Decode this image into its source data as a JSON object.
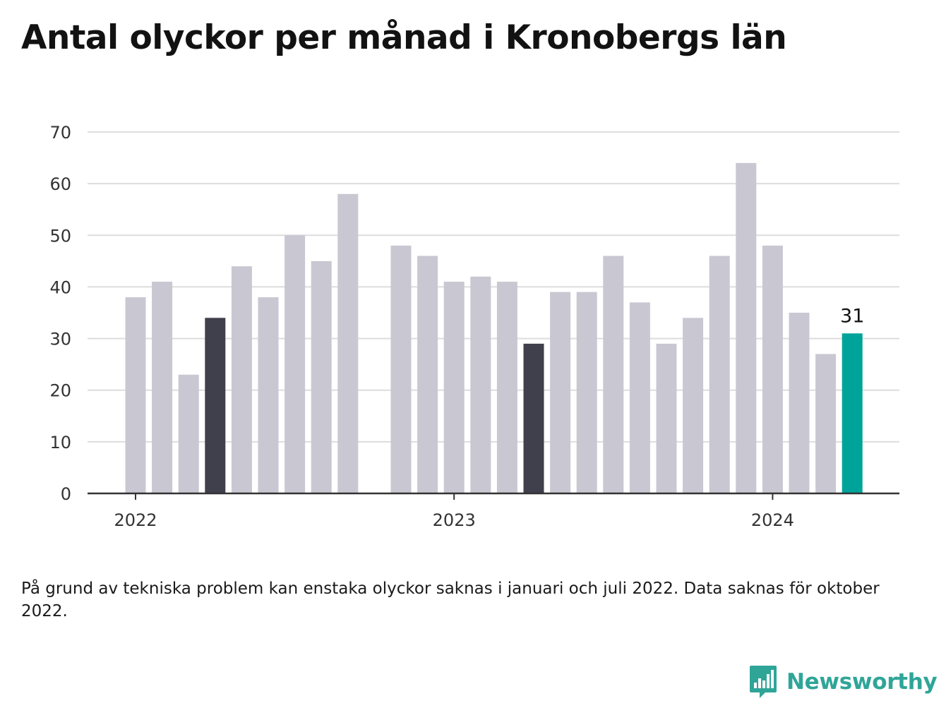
{
  "title": "Antal olyckor per månad i Kronobergs län",
  "footnote": "På grund av tekniska problem kan enstaka olyckor saknas i januari och juli 2022. Data saknas för oktober 2022.",
  "brand": {
    "name": "Newsworthy",
    "icon": "newsworthy-logo-icon",
    "color": "#2fa598"
  },
  "colors": {
    "default_bar": "#c9c8d2",
    "highlight_bar": "#403f4c",
    "latest_bar": "#00a39a",
    "grid": "#dddddd",
    "axis": "#333333",
    "tick_text": "#333333"
  },
  "chart_data": {
    "type": "bar",
    "title": "Antal olyckor per månad i Kronobergs län",
    "xlabel": "",
    "ylabel": "",
    "ylim": [
      0,
      70
    ],
    "yticks": [
      "0",
      "10",
      "20",
      "30",
      "40",
      "50",
      "60",
      "70"
    ],
    "xticks": [
      {
        "label": "2022",
        "month": "2022-01"
      },
      {
        "label": "2023",
        "month": "2023-01"
      },
      {
        "label": "2024",
        "month": "2024-01"
      }
    ],
    "grid": true,
    "legend": "none",
    "bars": [
      {
        "month": "2022-01",
        "value": 38,
        "style": "default"
      },
      {
        "month": "2022-02",
        "value": 41,
        "style": "default"
      },
      {
        "month": "2022-03",
        "value": 23,
        "style": "default"
      },
      {
        "month": "2022-04",
        "value": 34,
        "style": "highlight"
      },
      {
        "month": "2022-05",
        "value": 44,
        "style": "default"
      },
      {
        "month": "2022-06",
        "value": 38,
        "style": "default"
      },
      {
        "month": "2022-07",
        "value": 50,
        "style": "default"
      },
      {
        "month": "2022-08",
        "value": 45,
        "style": "default"
      },
      {
        "month": "2022-09",
        "value": 58,
        "style": "default"
      },
      {
        "month": "2022-10",
        "value": null,
        "style": "default"
      },
      {
        "month": "2022-11",
        "value": 48,
        "style": "default"
      },
      {
        "month": "2022-12",
        "value": 46,
        "style": "default"
      },
      {
        "month": "2023-01",
        "value": 41,
        "style": "default"
      },
      {
        "month": "2023-02",
        "value": 42,
        "style": "default"
      },
      {
        "month": "2023-03",
        "value": 41,
        "style": "default"
      },
      {
        "month": "2023-04",
        "value": 29,
        "style": "highlight"
      },
      {
        "month": "2023-05",
        "value": 39,
        "style": "default"
      },
      {
        "month": "2023-06",
        "value": 39,
        "style": "default"
      },
      {
        "month": "2023-07",
        "value": 46,
        "style": "default"
      },
      {
        "month": "2023-08",
        "value": 37,
        "style": "default"
      },
      {
        "month": "2023-09",
        "value": 29,
        "style": "default"
      },
      {
        "month": "2023-10",
        "value": 34,
        "style": "default"
      },
      {
        "month": "2023-11",
        "value": 46,
        "style": "default"
      },
      {
        "month": "2023-12",
        "value": 64,
        "style": "default"
      },
      {
        "month": "2024-01",
        "value": 48,
        "style": "default"
      },
      {
        "month": "2024-02",
        "value": 35,
        "style": "default"
      },
      {
        "month": "2024-03",
        "value": 27,
        "style": "default"
      },
      {
        "month": "2024-04",
        "value": 31,
        "style": "latest"
      }
    ],
    "annotations": [
      {
        "month": "2024-04",
        "text": "31"
      }
    ]
  }
}
